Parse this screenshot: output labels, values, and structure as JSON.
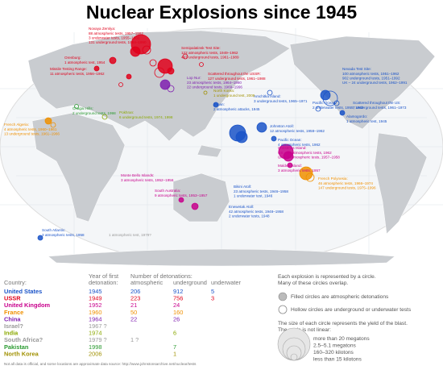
{
  "title": "Nuclear Explosions since 1945",
  "annotations": [
    {
      "color": "#e0001b",
      "lines": [
        "Novaya Zemlya:",
        "88 atmospheric tests, 1957–1962",
        "3 underwater tests, 1955–1961",
        "131 underground tests, 1964–1990"
      ]
    },
    {
      "color": "#e0001b",
      "lines": [
        "Semipalatinsk Test Site:",
        "122 atmospheric tests, 1949–1962",
        "497 underground tests, 1961–1989"
      ]
    },
    {
      "color": "#e0001b",
      "lines": [
        "Orenburg:",
        "1 atmospheric test, 1954"
      ]
    },
    {
      "color": "#e0001b",
      "lines": [
        "Missile Testing Range:",
        "11 atmospheric tests, 1956–1962"
      ]
    },
    {
      "color": "#e0001b",
      "lines": [
        "Scattered throughout the USSR:",
        "127 underground tests, 1961–1988"
      ]
    },
    {
      "color": "#1a53c8",
      "lines": [
        "Amchitka Island:",
        "3 underground tests, 1965–1971"
      ]
    },
    {
      "color": "#1a53c8",
      "lines": [
        "Nevada Test Site:",
        "100 atmospheric tests, 1951–1962",
        "902 underground tests, 1951–1992",
        "UK – 24 underground tests, 1962–1991"
      ]
    },
    {
      "color": "#1a53c8",
      "lines": [
        "Scattered throughout the US:",
        "7 underground tests, 1961–1973"
      ]
    },
    {
      "color": "#1a53c8",
      "lines": [
        "Alamogordo:",
        "1 atmospheric test, 1945"
      ]
    },
    {
      "color": "#8020b0",
      "lines": [
        "Lop Nur:",
        "23 atmospheric tests, 1964–1980",
        "22 underground tests, 1969–1996"
      ]
    },
    {
      "color": "#a09000",
      "lines": [
        "North Korea:",
        "1 underground test, 2006"
      ]
    },
    {
      "color": "#1a53c8",
      "lines": [
        "Japan:",
        "2 atmospheric attacks, 1945"
      ]
    },
    {
      "color": "#2a9a30",
      "lines": [
        "Chagai Hills:",
        "2 underground tests, 1998"
      ]
    },
    {
      "color": "#8aa800",
      "lines": [
        "Pokhran:",
        "6 underground tests, 1974, 1998"
      ]
    },
    {
      "color": "#f09000",
      "lines": [
        "French Algeria:",
        "4 atmospheric tests, 1960–1961",
        "13 underground tests, 1961–1966"
      ]
    },
    {
      "color": "#1a53c8",
      "lines": [
        "Pacific Ocean:",
        "2 underwater tests, 1955, 1962"
      ]
    },
    {
      "color": "#1a53c8",
      "lines": [
        "Johnston Atoll:",
        "12 atmospheric tests, 1958–1962"
      ]
    },
    {
      "color": "#1a53c8",
      "lines": [
        "Pacific Ocean:",
        "4 atmospheric tests, 1962"
      ]
    },
    {
      "color": "#c8008c",
      "lines": [
        "Christmas Island:",
        "US – 24 atmospheric tests, 1962",
        "UK – 6 atmospheric tests, 1957–1958"
      ]
    },
    {
      "color": "#c8008c",
      "lines": [
        "Malden Island:",
        "3 atmospheric tests, 1957"
      ]
    },
    {
      "color": "#f09000",
      "lines": [
        "French Polynesia:",
        "46 atmospheric tests, 1966–1974",
        "147 underground tests, 1975–1996"
      ]
    },
    {
      "color": "#1a53c8",
      "lines": [
        "Bikini Atoll:",
        "23 atmospheric tests, 1946–1958",
        "1 underwater test, 1946"
      ]
    },
    {
      "color": "#1a53c8",
      "lines": [
        "Enewetak Atoll:",
        "42 atmospheric tests, 1948–1958",
        "2 underwater tests, 1948"
      ]
    },
    {
      "color": "#c8008c",
      "lines": [
        "Monte Bello Islands:",
        "3 atmospheric tests, 1952–1956"
      ]
    },
    {
      "color": "#c8008c",
      "lines": [
        "South Australia:",
        "9 atmospheric tests, 1953–1957"
      ]
    },
    {
      "color": "#1a53c8",
      "lines": [
        "South Atlantic:",
        "3 atmospheric tests, 1958"
      ]
    },
    {
      "color": "#999999",
      "lines": [
        "1 atmospheric test, 1979?"
      ]
    }
  ],
  "table": {
    "header": {
      "country": "Country:",
      "year": [
        "Year of first",
        "detonation:"
      ],
      "number": "Number of detonations:",
      "cols": [
        "atmospheric",
        "underground",
        "underwater"
      ]
    },
    "rows": [
      {
        "color": "#1a53c8",
        "cells": [
          "United States",
          "1945",
          "206",
          "912",
          "5"
        ]
      },
      {
        "color": "#e0001b",
        "cells": [
          "USSR",
          "1949",
          "223",
          "756",
          "3"
        ]
      },
      {
        "color": "#c8008c",
        "cells": [
          "United Kingdom",
          "1952",
          "21",
          "24",
          null
        ]
      },
      {
        "color": "#f09000",
        "cells": [
          "France",
          "1960",
          "50",
          "160",
          null
        ]
      },
      {
        "color": "#8020b0",
        "cells": [
          "China",
          "1964",
          "22",
          "26",
          null
        ]
      },
      {
        "color": "#999999",
        "cells": [
          "Israel?",
          "1967 ?",
          null,
          null,
          null
        ]
      },
      {
        "color": "#8aa800",
        "cells": [
          "India",
          "1974",
          null,
          "6",
          null
        ]
      },
      {
        "color": "#999999",
        "cells": [
          "South Africa?",
          "1979 ?",
          "1 ?",
          null,
          null
        ]
      },
      {
        "color": "#2a9a30",
        "cells": [
          "Pakistan",
          "1998",
          null,
          "7",
          null
        ]
      },
      {
        "color": "#a09000",
        "cells": [
          "North Korea",
          "2006",
          null,
          "1",
          null
        ]
      }
    ]
  },
  "legend": {
    "intro": [
      "Each explosion is represented by a circle.",
      "Many of these circles overlap."
    ],
    "filled": "Filled circles are atmospheric detonations",
    "hollow": "Hollow circles are underground or underwater tests",
    "size": [
      "The size of each circle represents the yield of the blast.",
      "The scale is not linear:"
    ],
    "scale": [
      "more than 20 megatons",
      "2.5–5.1 megatons",
      "160–320 kilotons",
      "less than 15 kilotons"
    ]
  },
  "footer": "Not all data is official, and some locations are approximate data source: http://www.johnstonsarchive.net/nuclear/tests"
}
